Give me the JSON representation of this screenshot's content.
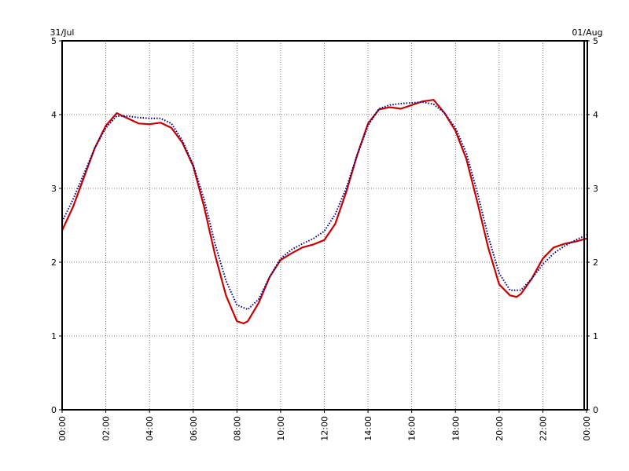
{
  "chart_data": {
    "type": "line",
    "title": "",
    "xlabel": "",
    "ylabel": "",
    "date_start_label": "31/Jul",
    "date_end_label": "01/Aug",
    "xlim": [
      0,
      24
    ],
    "ylim": [
      0,
      5
    ],
    "x_ticks": [
      {
        "value": 0,
        "label": "00:00"
      },
      {
        "value": 2,
        "label": "02:00"
      },
      {
        "value": 4,
        "label": "04:00"
      },
      {
        "value": 6,
        "label": "06:00"
      },
      {
        "value": 8,
        "label": "08:00"
      },
      {
        "value": 10,
        "label": "10:00"
      },
      {
        "value": 12,
        "label": "12:00"
      },
      {
        "value": 14,
        "label": "14:00"
      },
      {
        "value": 16,
        "label": "16:00"
      },
      {
        "value": 18,
        "label": "18:00"
      },
      {
        "value": 20,
        "label": "20:00"
      },
      {
        "value": 22,
        "label": "22:00"
      },
      {
        "value": 24,
        "label": "00:00"
      }
    ],
    "y_ticks": [
      {
        "value": 0,
        "label": "0"
      },
      {
        "value": 1,
        "label": "1"
      },
      {
        "value": 2,
        "label": "2"
      },
      {
        "value": 3,
        "label": "3"
      },
      {
        "value": 4,
        "label": "4"
      },
      {
        "value": 5,
        "label": "5"
      }
    ],
    "grid": true,
    "series": [
      {
        "color": "#cc0000",
        "style": "solid",
        "x": [
          0,
          0.5,
          1,
          1.5,
          2,
          2.5,
          3,
          3.5,
          4,
          4.5,
          5,
          5.5,
          6,
          6.5,
          7,
          7.5,
          8,
          8.3,
          8.5,
          9,
          9.5,
          10,
          10.5,
          11,
          11.5,
          12,
          12.5,
          13,
          13.5,
          14,
          14.5,
          15,
          15.5,
          16,
          16.5,
          17,
          17.5,
          18,
          18.5,
          19,
          19.5,
          20,
          20.5,
          20.8,
          21,
          21.5,
          22,
          22.5,
          23,
          23.5,
          24
        ],
        "y": [
          2.43,
          2.75,
          3.15,
          3.55,
          3.85,
          4.02,
          3.95,
          3.88,
          3.87,
          3.89,
          3.82,
          3.62,
          3.3,
          2.75,
          2.1,
          1.55,
          1.2,
          1.17,
          1.2,
          1.45,
          1.8,
          2.03,
          2.12,
          2.2,
          2.24,
          2.3,
          2.52,
          2.95,
          3.45,
          3.88,
          4.07,
          4.1,
          4.08,
          4.13,
          4.18,
          4.2,
          4.02,
          3.78,
          3.4,
          2.82,
          2.2,
          1.7,
          1.55,
          1.53,
          1.57,
          1.78,
          2.05,
          2.2,
          2.25,
          2.28,
          2.32
        ]
      },
      {
        "color": "#00008b",
        "style": "dotted",
        "x": [
          0,
          0.5,
          1,
          1.5,
          2,
          2.5,
          3,
          3.5,
          4,
          4.5,
          5,
          5.5,
          6,
          6.5,
          7,
          7.5,
          8,
          8.5,
          9,
          9.5,
          10,
          10.5,
          11,
          11.5,
          12,
          12.5,
          13,
          13.5,
          14,
          14.5,
          15,
          15.5,
          16,
          16.5,
          17,
          17.5,
          18,
          18.5,
          19,
          19.5,
          20,
          20.5,
          21,
          21.5,
          22,
          22.5,
          23,
          23.5,
          24
        ],
        "y": [
          2.55,
          2.85,
          3.2,
          3.55,
          3.82,
          3.98,
          3.98,
          3.96,
          3.95,
          3.95,
          3.88,
          3.65,
          3.32,
          2.85,
          2.25,
          1.75,
          1.42,
          1.36,
          1.5,
          1.8,
          2.05,
          2.17,
          2.25,
          2.32,
          2.42,
          2.65,
          3.0,
          3.45,
          3.85,
          4.08,
          4.13,
          4.15,
          4.16,
          4.17,
          4.14,
          4.02,
          3.82,
          3.48,
          2.95,
          2.35,
          1.85,
          1.62,
          1.62,
          1.78,
          1.97,
          2.12,
          2.22,
          2.3,
          2.37
        ]
      }
    ]
  }
}
